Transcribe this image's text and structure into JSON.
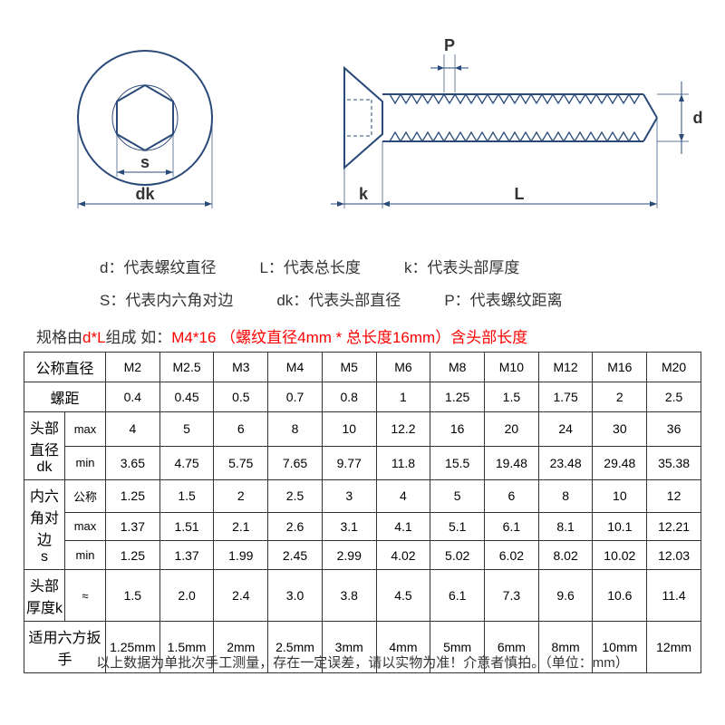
{
  "diagram": {
    "stroke_color": "#2a4a7a",
    "stroke_width": 1.5,
    "labels": {
      "s": "s",
      "dk": "dk",
      "P": "P",
      "d": "d",
      "k": "k",
      "L": "L"
    }
  },
  "legend": {
    "d": "d：代表螺纹直径",
    "L": "L：代表总长度",
    "k": "k：代表头部厚度",
    "S": "S：代表内六角对边",
    "dk": "dk：代表头部直径",
    "P": "P：代表螺纹距离"
  },
  "spec": {
    "prefix": "规格由",
    "mid1": "d*L",
    "mid2": "组成      如：",
    "example": "M4*16   （螺纹直径4mm * 总长度16mm）含头部长度"
  },
  "table": {
    "headers": [
      "公称直径",
      "螺距",
      "头部直径\ndk",
      "内六角对边\ns",
      "头部厚度k",
      "适用六方扳手"
    ],
    "sizes": [
      "M2",
      "M2.5",
      "M3",
      "M4",
      "M5",
      "M6",
      "M8",
      "M10",
      "M12",
      "M16",
      "M20"
    ],
    "pitch": [
      "0.4",
      "0.45",
      "0.5",
      "0.7",
      "0.8",
      "1",
      "1.25",
      "1.5",
      "1.75",
      "2",
      "2.5"
    ],
    "dk_max": [
      "4",
      "5",
      "6",
      "8",
      "10",
      "12.2",
      "16",
      "20",
      "24",
      "30",
      "36"
    ],
    "dk_min": [
      "3.65",
      "4.75",
      "5.75",
      "7.65",
      "9.77",
      "11.8",
      "15.5",
      "19.48",
      "23.48",
      "29.48",
      "35.38"
    ],
    "s_nom": [
      "1.25",
      "1.5",
      "2",
      "2.5",
      "3",
      "4",
      "5",
      "6",
      "8",
      "10",
      "12"
    ],
    "s_max": [
      "1.37",
      "1.51",
      "2.1",
      "2.6",
      "3.1",
      "4.1",
      "5.1",
      "6.1",
      "8.1",
      "10.1",
      "12.21"
    ],
    "s_min": [
      "1.25",
      "1.37",
      "1.99",
      "2.45",
      "2.99",
      "4.02",
      "5.02",
      "6.02",
      "8.02",
      "10.02",
      "12.03"
    ],
    "k": [
      "1.5",
      "2.0",
      "2.4",
      "3.0",
      "3.8",
      "4.5",
      "6.1",
      "7.3",
      "9.6",
      "10.6",
      "11.4"
    ],
    "wrench": [
      "1.25mm",
      "1.5mm",
      "2mm",
      "2.5mm",
      "3mm",
      "4mm",
      "5mm",
      "6mm",
      "8mm",
      "10mm",
      "12mm"
    ],
    "sub": {
      "max": "max",
      "min": "min",
      "nom": "公称",
      "approx": "≈"
    }
  },
  "footer": "以上数据为单批次手工测量，存在一定误差，请以实物为准！介意者慎拍。（单位：mm）"
}
